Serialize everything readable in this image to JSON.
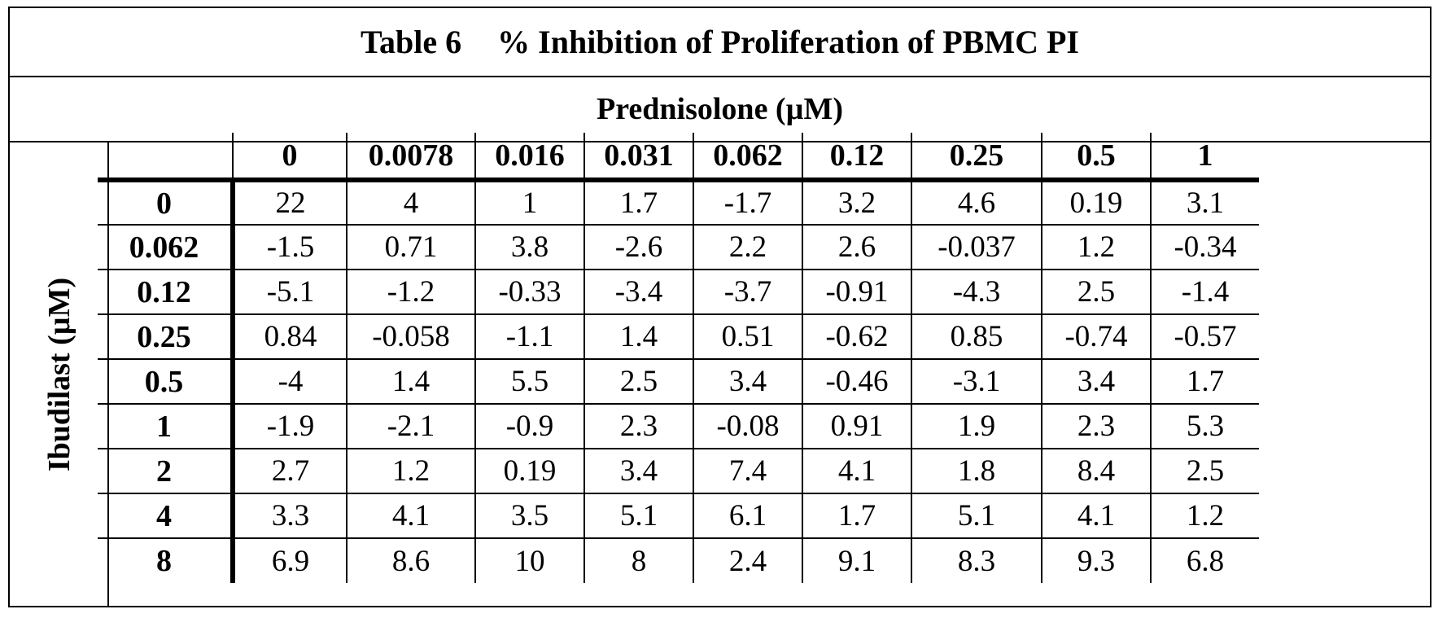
{
  "table": {
    "title_number": "Table 6",
    "title_text": "% Inhibition of Proliferation of PBMC PI",
    "column_header": "Prednisolone (µM)",
    "row_header": "Ibudilast (µM)",
    "columns": [
      "0",
      "0.0078",
      "0.016",
      "0.031",
      "0.062",
      "0.12",
      "0.25",
      "0.5",
      "1"
    ],
    "rows": [
      {
        "label": "0",
        "values": [
          "22",
          "4",
          "1",
          "1.7",
          "-1.7",
          "3.2",
          "4.6",
          "0.19",
          "3.1"
        ]
      },
      {
        "label": "0.062",
        "values": [
          "-1.5",
          "0.71",
          "3.8",
          "-2.6",
          "2.2",
          "2.6",
          "-0.037",
          "1.2",
          "-0.34"
        ]
      },
      {
        "label": "0.12",
        "values": [
          "-5.1",
          "-1.2",
          "-0.33",
          "-3.4",
          "-3.7",
          "-0.91",
          "-4.3",
          "2.5",
          "-1.4"
        ]
      },
      {
        "label": "0.25",
        "values": [
          "0.84",
          "-0.058",
          "-1.1",
          "1.4",
          "0.51",
          "-0.62",
          "0.85",
          "-0.74",
          "-0.57"
        ]
      },
      {
        "label": "0.5",
        "values": [
          "-4",
          "1.4",
          "5.5",
          "2.5",
          "3.4",
          "-0.46",
          "-3.1",
          "3.4",
          "1.7"
        ]
      },
      {
        "label": "1",
        "values": [
          "-1.9",
          "-2.1",
          "-0.9",
          "2.3",
          "-0.08",
          "0.91",
          "1.9",
          "2.3",
          "5.3"
        ]
      },
      {
        "label": "2",
        "values": [
          "2.7",
          "1.2",
          "0.19",
          "3.4",
          "7.4",
          "4.1",
          "1.8",
          "8.4",
          "2.5"
        ]
      },
      {
        "label": "4",
        "values": [
          "3.3",
          "4.1",
          "3.5",
          "5.1",
          "6.1",
          "1.7",
          "5.1",
          "4.1",
          "1.2"
        ]
      },
      {
        "label": "8",
        "values": [
          "6.9",
          "8.6",
          "10",
          "8",
          "2.4",
          "9.1",
          "8.3",
          "9.3",
          "6.8"
        ]
      }
    ]
  }
}
